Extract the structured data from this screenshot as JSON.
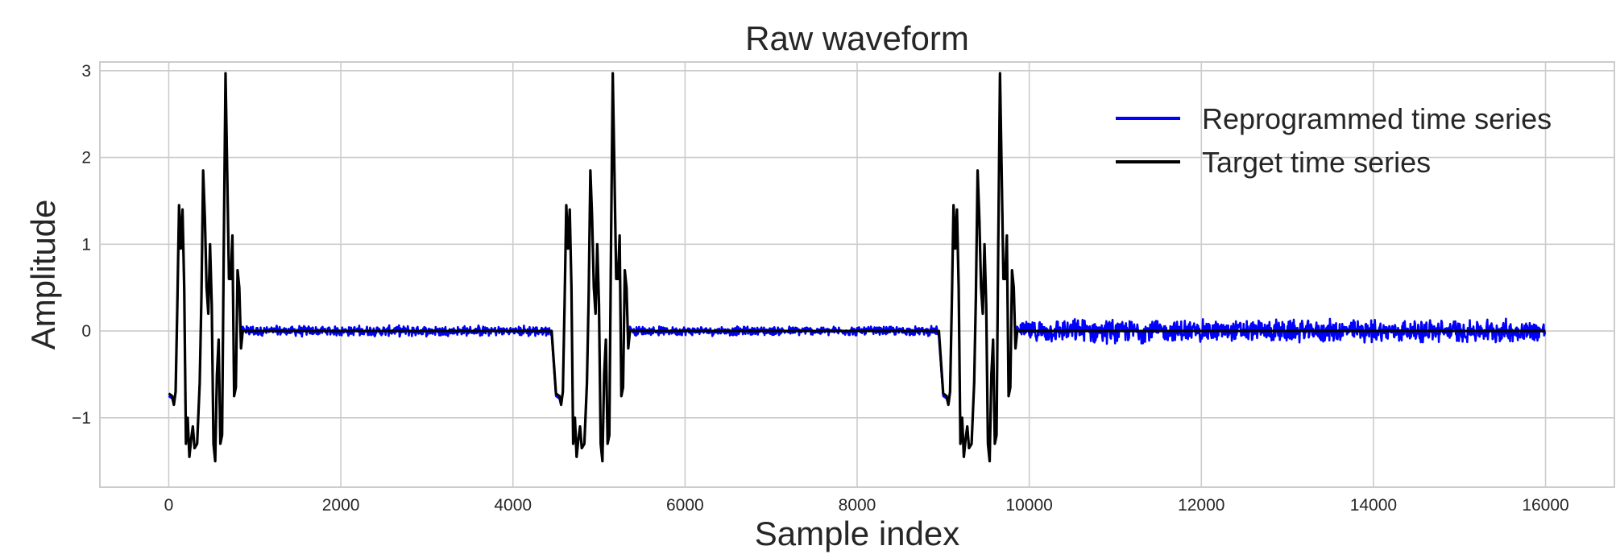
{
  "chart_data": {
    "type": "line",
    "title": "Raw waveform",
    "xlabel": "Sample index",
    "ylabel": "Amplitude",
    "xlim": [
      -800,
      16800
    ],
    "ylim": [
      -1.8,
      3.1
    ],
    "x_ticks": [
      0,
      2000,
      4000,
      6000,
      8000,
      10000,
      12000,
      14000,
      16000
    ],
    "x_tick_labels": [
      "0",
      "2000",
      "4000",
      "6000",
      "8000",
      "10000",
      "12000",
      "14000",
      "16000"
    ],
    "y_ticks": [
      -1,
      0,
      1,
      2,
      3
    ],
    "y_tick_labels": [
      "−1",
      "0",
      "1",
      "2",
      "3"
    ],
    "grid": true,
    "legend_position": "top-right",
    "series": [
      {
        "name": "Reprogrammed time series",
        "color": "#0000ff",
        "description_points": [
          [
            0,
            -0.75
          ],
          [
            40,
            -0.78
          ],
          [
            60,
            -0.85
          ],
          [
            80,
            -0.7
          ],
          [
            100,
            0.3
          ],
          [
            120,
            1.45
          ],
          [
            140,
            0.95
          ],
          [
            160,
            1.4
          ],
          [
            180,
            0.5
          ],
          [
            200,
            -1.3
          ],
          [
            220,
            -1.0
          ],
          [
            240,
            -1.45
          ],
          [
            260,
            -1.25
          ],
          [
            280,
            -1.1
          ],
          [
            300,
            -1.35
          ],
          [
            330,
            -1.3
          ],
          [
            360,
            -0.6
          ],
          [
            380,
            0.4
          ],
          [
            400,
            1.8
          ],
          [
            420,
            1.3
          ],
          [
            440,
            0.5
          ],
          [
            460,
            0.2
          ],
          [
            480,
            1.0
          ],
          [
            500,
            0.3
          ],
          [
            520,
            -1.3
          ],
          [
            540,
            -1.5
          ],
          [
            560,
            -0.5
          ],
          [
            580,
            -0.1
          ],
          [
            600,
            -1.3
          ],
          [
            620,
            -1.2
          ],
          [
            640,
            1.0
          ],
          [
            660,
            2.95
          ],
          [
            680,
            1.8
          ],
          [
            700,
            0.6
          ],
          [
            720,
            0.6
          ],
          [
            740,
            1.1
          ],
          [
            760,
            -0.75
          ],
          [
            780,
            -0.65
          ],
          [
            800,
            0.7
          ],
          [
            820,
            0.5
          ],
          [
            840,
            -0.2
          ],
          [
            860,
            0.05
          ],
          [
            900,
            -0.02
          ]
        ],
        "noise_amplitude_segments": [
          [
            900,
            4450,
            0.07
          ],
          [
            5400,
            8950,
            0.06
          ],
          [
            9900,
            16000,
            0.15
          ]
        ]
      },
      {
        "name": "Target time series",
        "color": "#000000",
        "description_points": [
          [
            0,
            -0.72
          ],
          [
            40,
            -0.75
          ],
          [
            60,
            -0.85
          ],
          [
            80,
            -0.7
          ],
          [
            100,
            0.3
          ],
          [
            120,
            1.45
          ],
          [
            140,
            0.95
          ],
          [
            160,
            1.4
          ],
          [
            180,
            0.5
          ],
          [
            200,
            -1.3
          ],
          [
            220,
            -1.0
          ],
          [
            240,
            -1.45
          ],
          [
            260,
            -1.25
          ],
          [
            280,
            -1.1
          ],
          [
            300,
            -1.35
          ],
          [
            330,
            -1.3
          ],
          [
            360,
            -0.6
          ],
          [
            380,
            0.4
          ],
          [
            400,
            1.85
          ],
          [
            420,
            1.3
          ],
          [
            440,
            0.5
          ],
          [
            460,
            0.2
          ],
          [
            480,
            1.0
          ],
          [
            500,
            0.3
          ],
          [
            520,
            -1.3
          ],
          [
            540,
            -1.5
          ],
          [
            560,
            -0.5
          ],
          [
            580,
            -0.1
          ],
          [
            600,
            -1.3
          ],
          [
            620,
            -1.2
          ],
          [
            640,
            1.0
          ],
          [
            660,
            2.97
          ],
          [
            680,
            1.8
          ],
          [
            700,
            0.6
          ],
          [
            720,
            0.6
          ],
          [
            740,
            1.1
          ],
          [
            760,
            -0.75
          ],
          [
            780,
            -0.65
          ],
          [
            800,
            0.7
          ],
          [
            820,
            0.5
          ],
          [
            840,
            -0.2
          ],
          [
            860,
            0.0
          ],
          [
            900,
            0.0
          ]
        ],
        "burst_starts": [
          0,
          4500,
          9000
        ],
        "flat_value_after_bursts": 0.0
      }
    ]
  }
}
